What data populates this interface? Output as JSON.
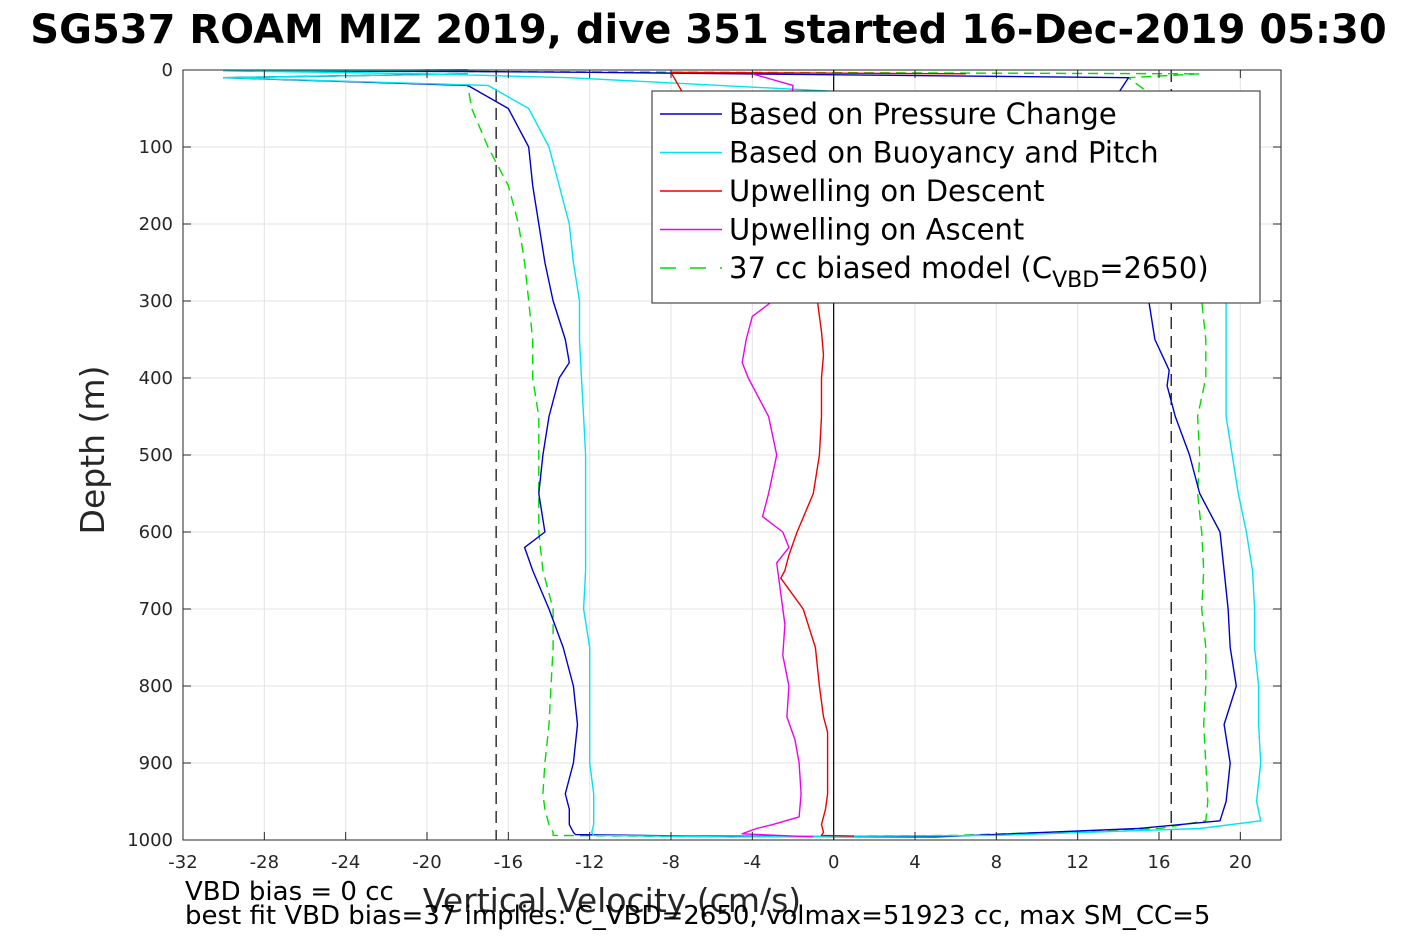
{
  "title": "SG537 ROAM MIZ 2019, dive 351 started 16-Dec-2019 05:30",
  "footer": {
    "line1": "VBD bias = 0 cc",
    "line2": "best fit VBD bias=37 implies: C_VBD=2650, volmax=51923 cc, max SM_CC=5"
  },
  "chart_data": {
    "type": "line",
    "xlabel": "Vertical Velocity (cm/s)",
    "ylabel": "Depth (m)",
    "xlim": [
      -32,
      22
    ],
    "ylim": [
      0,
      1000
    ],
    "y_reversed": true,
    "xticks": [
      -32,
      -28,
      -24,
      -20,
      -16,
      -12,
      -8,
      -4,
      0,
      4,
      8,
      12,
      16,
      20
    ],
    "yticks": [
      0,
      100,
      200,
      300,
      400,
      500,
      600,
      700,
      800,
      900,
      1000
    ],
    "grid": true,
    "legend_position": "top-right",
    "reference_lines": [
      {
        "x": -16.6,
        "style": "dashed",
        "color": "#000000"
      },
      {
        "x": 0,
        "style": "solid",
        "color": "#000000"
      },
      {
        "x": 16.6,
        "style": "dashed",
        "color": "#000000"
      }
    ],
    "series": [
      {
        "name": "Based on Pressure Change",
        "color": "#0000cc",
        "style": "solid",
        "x": [
          -18,
          -30,
          -18,
          -16,
          -15,
          -14.8,
          -14.5,
          -14.2,
          -13.8,
          -13.2,
          -13,
          -13.5,
          -14,
          -14.3,
          -14.5,
          -14.2,
          -15.2,
          -14.8,
          -14,
          -13.3,
          -12.8,
          -12.6,
          -12.8,
          -13.2,
          -13,
          -13,
          -12.8,
          -12.7,
          -7,
          5,
          15,
          19,
          19.3,
          19.5,
          19.2,
          19.8,
          19.5,
          19.4,
          19.2,
          19,
          18,
          17.5,
          16.8,
          16.4,
          16.5,
          15.8,
          15.5,
          15.2,
          15.6,
          15.3,
          14.5,
          13.5,
          14.5,
          -12,
          -18,
          -30,
          -18
        ],
        "y": [
          5,
          10,
          20,
          50,
          100,
          150,
          200,
          250,
          300,
          350,
          380,
          400,
          450,
          500,
          550,
          600,
          620,
          650,
          700,
          750,
          800,
          850,
          900,
          940,
          960,
          980,
          990,
          993,
          995,
          996,
          985,
          975,
          950,
          900,
          850,
          800,
          750,
          700,
          650,
          600,
          550,
          500,
          450,
          410,
          390,
          350,
          300,
          250,
          200,
          150,
          100,
          50,
          10,
          3,
          2,
          1,
          0
        ]
      },
      {
        "name": "Based on Buoyancy and Pitch",
        "color": "#00e5ee",
        "style": "solid",
        "x": [
          -18,
          -30,
          -17,
          -15,
          -14,
          -13.5,
          -13,
          -12.8,
          -12.5,
          -12.5,
          -12.4,
          -12.3,
          -12.2,
          -12.2,
          -12.2,
          -12.2,
          -12.3,
          -12,
          -12,
          -12,
          -12,
          -11.8,
          -11.8,
          -11.8,
          -11.9,
          -11.8,
          -5,
          8,
          18,
          21,
          20.8,
          21,
          20.9,
          20.9,
          20.7,
          20.7,
          20.6,
          20.3,
          19.9,
          19.6,
          19.3,
          19.3,
          19.3,
          19.3,
          18.8,
          18.2,
          17.2,
          17.5,
          16.5,
          -13,
          -20,
          -30,
          -18
        ],
        "y": [
          5,
          10,
          20,
          50,
          100,
          150,
          200,
          250,
          300,
          350,
          400,
          450,
          500,
          550,
          600,
          650,
          700,
          750,
          800,
          850,
          900,
          940,
          960,
          980,
          990,
          994,
          996,
          994,
          985,
          975,
          950,
          900,
          850,
          800,
          750,
          700,
          650,
          600,
          550,
          500,
          450,
          400,
          350,
          300,
          250,
          200,
          150,
          100,
          50,
          10,
          5,
          1,
          0
        ]
      },
      {
        "name": "Upwelling on Descent",
        "color": "#ee0000",
        "style": "solid",
        "x": [
          6.5,
          -8,
          -2,
          -0.8,
          -0.6,
          -0.5,
          -0.6,
          -0.6,
          -0.7,
          -1,
          -1.8,
          -2.2,
          -2.4,
          -2.6,
          -1.5,
          -0.9,
          -0.7,
          -0.5,
          -0.3,
          -0.3,
          -0.3,
          -0.4,
          -0.6,
          -0.5,
          -0.6,
          1
        ],
        "y": [
          5,
          3,
          280,
          300,
          340,
          370,
          400,
          450,
          500,
          550,
          600,
          630,
          650,
          660,
          700,
          750,
          800,
          840,
          860,
          900,
          940,
          960,
          980,
          990,
          994,
          995
        ]
      },
      {
        "name": "Upwelling on Ascent",
        "color": "#ee00ee",
        "style": "solid",
        "x": [
          -4,
          -2,
          -3,
          -4,
          -4.3,
          -4.5,
          -4.2,
          -3.2,
          -2.8,
          -3.2,
          -3.5,
          -2.5,
          -2.2,
          -2.8,
          -2.6,
          -2.4,
          -2.5,
          -2.2,
          -2.3,
          -1.9,
          -1.7,
          -1.6,
          -1.7,
          -3,
          -3.8,
          -4.5,
          -1
        ],
        "y": [
          5,
          20,
          300,
          320,
          350,
          380,
          400,
          450,
          500,
          550,
          580,
          600,
          620,
          640,
          680,
          720,
          760,
          800,
          840,
          870,
          900,
          940,
          970,
          980,
          985,
          992,
          996
        ]
      },
      {
        "name": "37 cc biased model (C_VBD=2650)",
        "color": "#00dd00",
        "style": "dashed",
        "x": [
          -18,
          -30,
          -18,
          -17.8,
          -17,
          -16,
          -15.5,
          -15.2,
          -15,
          -14.8,
          -14.8,
          -14.5,
          -14.5,
          -14.5,
          -14.5,
          -14.3,
          -13.8,
          -13.8,
          -13.9,
          -14,
          -14.2,
          -14.3,
          -14.2,
          -14,
          -13.8,
          -13.8,
          -5,
          6,
          16,
          18.3,
          18.4,
          18.3,
          18.2,
          18.3,
          18.3,
          18.1,
          18.2,
          18.1,
          17.9,
          18,
          17.9,
          18.3,
          18.3,
          18.1,
          17.6,
          17.4,
          17.2,
          16.8,
          16.5,
          14.5,
          18,
          -30,
          -18
        ],
        "y": [
          5,
          10,
          20,
          50,
          100,
          150,
          200,
          250,
          300,
          350,
          400,
          450,
          500,
          550,
          600,
          650,
          700,
          750,
          800,
          850,
          900,
          940,
          960,
          980,
          990,
          994,
          996,
          994,
          985,
          975,
          950,
          900,
          850,
          800,
          750,
          700,
          650,
          600,
          550,
          500,
          450,
          400,
          350,
          300,
          250,
          200,
          150,
          100,
          50,
          10,
          5,
          1,
          0
        ]
      }
    ]
  }
}
